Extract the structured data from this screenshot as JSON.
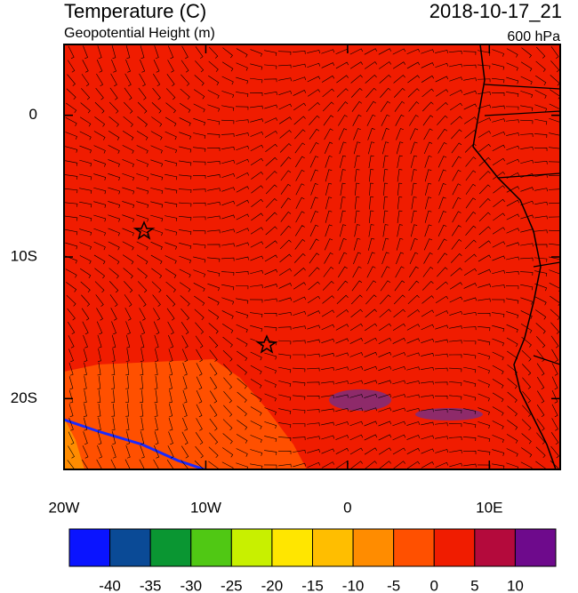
{
  "map": {
    "title": "Temperature (C)",
    "subtitle": "Geopotential Height (m)",
    "time": "2018-10-17_21",
    "level": "600 hPa",
    "xlim": [
      -20,
      15
    ],
    "ylim": [
      -25,
      5
    ],
    "xticks": [
      {
        "value": -20,
        "label": "20W"
      },
      {
        "value": -10,
        "label": "10W"
      },
      0,
      {
        "value": 10,
        "label": "10E"
      }
    ],
    "yticks": [
      0,
      {
        "value": -10,
        "label": "10S"
      },
      {
        "value": -20,
        "label": "20S"
      }
    ],
    "colorbar": {
      "colors": [
        "#0a14ff",
        "#0a4a96",
        "#0a9632",
        "#50c814",
        "#c8f000",
        "#ffe600",
        "#ffbe00",
        "#ff8c00",
        "#ff5000",
        "#f01c00",
        "#b40a3c",
        "#6e0a8c"
      ],
      "labels": [
        -40,
        -35,
        -30,
        -25,
        -20,
        -15,
        -10,
        -5,
        0,
        5,
        10
      ]
    }
  }
}
